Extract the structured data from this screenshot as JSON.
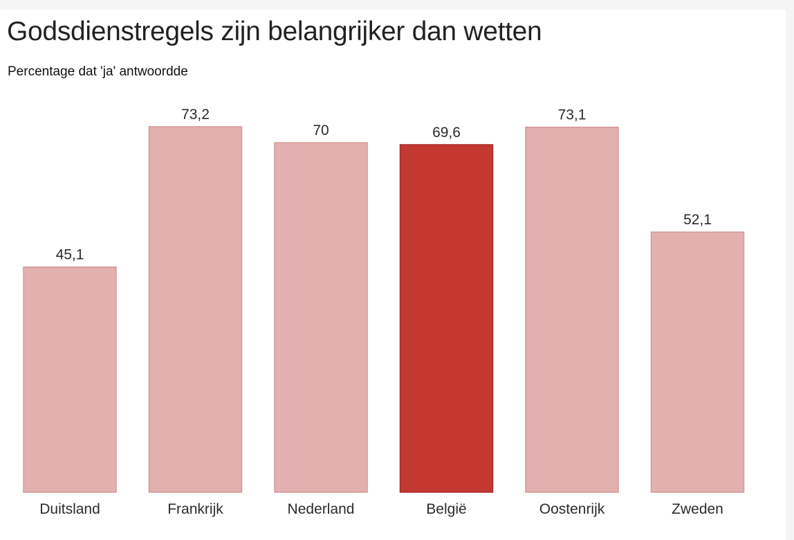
{
  "chart_data": {
    "type": "bar",
    "title": "Godsdienstregels zijn belangrijker dan wetten",
    "subtitle": "Percentage dat 'ja' antwoordde",
    "categories": [
      "Duitsland",
      "Frankrijk",
      "Nederland",
      "België",
      "Oostenrijk",
      "Zweden"
    ],
    "values": [
      45.1,
      73.2,
      70,
      69.6,
      73.1,
      52.1
    ],
    "value_labels": [
      "45,1",
      "73,2",
      "70",
      "69,6",
      "73,1",
      "52,1"
    ],
    "highlight_category": "België",
    "xlabel": "",
    "ylabel": "",
    "ylim": [
      0,
      73.2
    ],
    "grid": false,
    "legend": "none"
  },
  "colors": {
    "bar": "#e3b0b0",
    "bar_stroke": "#d49898",
    "highlight": "#c43832",
    "highlight_stroke": "#a82a25",
    "background": "#ffffff",
    "page_background": "#f5f5f5"
  }
}
